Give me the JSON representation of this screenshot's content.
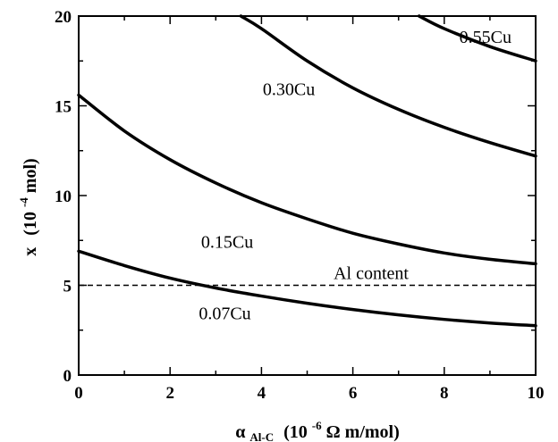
{
  "chart_data": {
    "type": "line",
    "title": "",
    "xlabel": {
      "symbol": "α",
      "subscript": "Al-C",
      "unit_prefix": "(10",
      "unit_exponent": "-6",
      "unit_suffix": "Ω m/mol)"
    },
    "ylabel": {
      "symbol": "x",
      "unit_prefix": "(10",
      "unit_exponent": "-4",
      "unit_suffix": "mol)"
    },
    "xlim": [
      0,
      10
    ],
    "ylim": [
      0,
      20
    ],
    "x_ticks": [
      "0",
      "2",
      "4",
      "6",
      "8",
      "10"
    ],
    "y_ticks": [
      "0",
      "5",
      "10",
      "15",
      "20"
    ],
    "grid": false,
    "series": [
      {
        "name": "0.07Cu",
        "style": "solid",
        "x": [
          0,
          1,
          2,
          3,
          4,
          5,
          6,
          7,
          8,
          9,
          10
        ],
        "y": [
          6.9,
          6.1,
          5.4,
          4.85,
          4.4,
          4.0,
          3.65,
          3.35,
          3.1,
          2.9,
          2.75
        ]
      },
      {
        "name": "0.15Cu",
        "style": "solid",
        "x": [
          0,
          1,
          2,
          3,
          4,
          5,
          6,
          7,
          8,
          9,
          10
        ],
        "y": [
          15.6,
          13.6,
          12.0,
          10.7,
          9.6,
          8.7,
          7.9,
          7.3,
          6.8,
          6.45,
          6.2
        ]
      },
      {
        "name": "0.30Cu",
        "style": "solid",
        "x": [
          3.55,
          4,
          5,
          6,
          7,
          8,
          9,
          10
        ],
        "y": [
          20.0,
          19.3,
          17.5,
          16.0,
          14.8,
          13.8,
          12.95,
          12.2
        ]
      },
      {
        "name": "0.55Cu",
        "style": "solid",
        "x": [
          7.45,
          8,
          9,
          10
        ],
        "y": [
          20.0,
          19.3,
          18.3,
          17.5
        ]
      },
      {
        "name": "Al content",
        "style": "dashed",
        "x": [
          0,
          10
        ],
        "y": [
          5,
          5
        ]
      }
    ],
    "annotations": [
      {
        "text": "0.55Cu",
        "series": "0.55Cu",
        "x": 8.9,
        "y": 18.5
      },
      {
        "text": "0.30Cu",
        "series": "0.30Cu",
        "x": 4.6,
        "y": 15.6
      },
      {
        "text": "0.15Cu",
        "series": "0.15Cu",
        "x": 3.25,
        "y": 7.1
      },
      {
        "text": "Al content",
        "series": "Al content",
        "x": 6.4,
        "y": 5.35
      },
      {
        "text": "0.07Cu",
        "series": "0.07Cu",
        "x": 3.2,
        "y": 3.1
      }
    ]
  }
}
